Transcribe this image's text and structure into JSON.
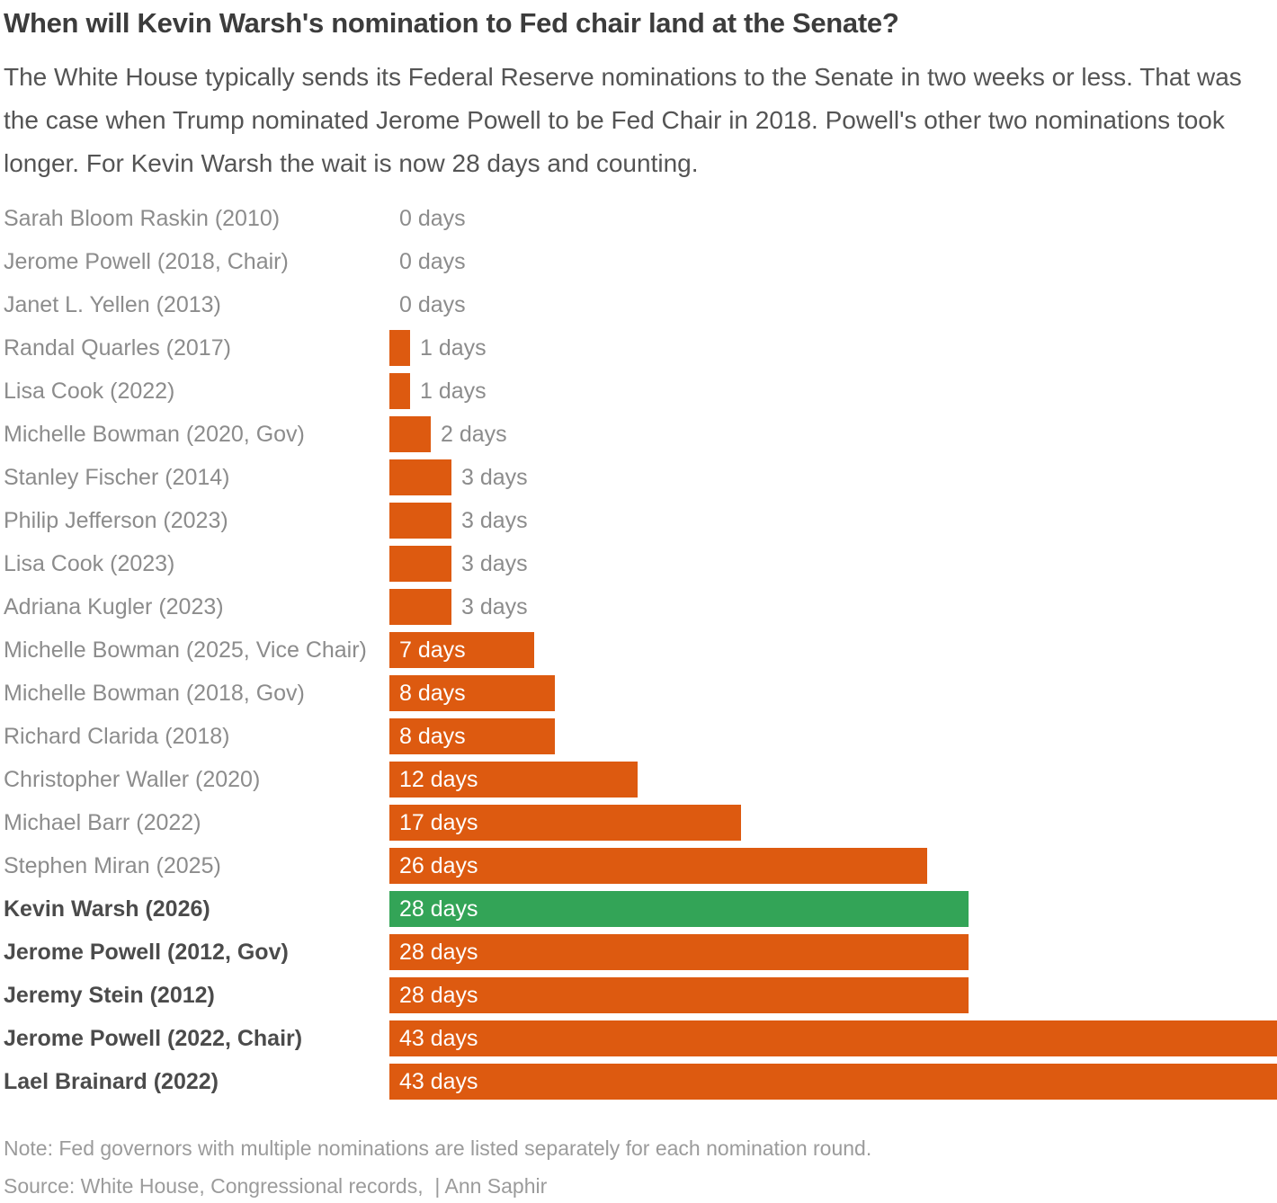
{
  "title": "When will Kevin Warsh's nomination to Fed chair land at the Senate?",
  "subtitle": "The White House typically sends its Federal Reserve nominations to the Senate in two weeks or less. That was the case when Trump nominated Jerome Powell to be Fed Chair in 2018. Powell's other two nominations took longer. For Kevin Warsh the wait is now 28 days and counting.",
  "note": "Note: Fed governors with multiple nominations are listed separately for each nomination round.",
  "source": "Source: White House, Congressional records,  | Ann Saphir",
  "colors": {
    "bar_default": "#dd5a10",
    "bar_highlight": "#33a457",
    "label_regular": "#8c8c8c",
    "label_bold": "#4b4b4b",
    "value_inside": "#ffffff",
    "value_outside": "#8c8c8c"
  },
  "chart_data": {
    "type": "bar",
    "orientation": "horizontal",
    "title": "When will Kevin Warsh's nomination to Fed chair land at the Senate?",
    "xlabel": "",
    "ylabel": "",
    "unit": "days",
    "xlim": [
      0,
      43
    ],
    "grid": false,
    "legend": false,
    "inside_label_min": 7,
    "rows": [
      {
        "label": "Sarah Bloom Raskin (2010)",
        "value": 0,
        "display": "0 days",
        "bold": false,
        "highlight": false
      },
      {
        "label": "Jerome Powell (2018, Chair)",
        "value": 0,
        "display": "0 days",
        "bold": false,
        "highlight": false
      },
      {
        "label": "Janet L. Yellen (2013)",
        "value": 0,
        "display": "0 days",
        "bold": false,
        "highlight": false
      },
      {
        "label": "Randal Quarles (2017)",
        "value": 1,
        "display": "1 days",
        "bold": false,
        "highlight": false
      },
      {
        "label": "Lisa Cook (2022)",
        "value": 1,
        "display": "1 days",
        "bold": false,
        "highlight": false
      },
      {
        "label": "Michelle Bowman (2020, Gov)",
        "value": 2,
        "display": "2 days",
        "bold": false,
        "highlight": false
      },
      {
        "label": "Stanley Fischer (2014)",
        "value": 3,
        "display": "3 days",
        "bold": false,
        "highlight": false
      },
      {
        "label": "Philip Jefferson (2023)",
        "value": 3,
        "display": "3 days",
        "bold": false,
        "highlight": false
      },
      {
        "label": "Lisa Cook (2023)",
        "value": 3,
        "display": "3 days",
        "bold": false,
        "highlight": false
      },
      {
        "label": "Adriana Kugler (2023)",
        "value": 3,
        "display": "3 days",
        "bold": false,
        "highlight": false
      },
      {
        "label": "Michelle Bowman (2025, Vice Chair)",
        "value": 7,
        "display": "7 days",
        "bold": false,
        "highlight": false
      },
      {
        "label": "Michelle Bowman (2018, Gov)",
        "value": 8,
        "display": "8 days",
        "bold": false,
        "highlight": false
      },
      {
        "label": "Richard Clarida (2018)",
        "value": 8,
        "display": "8 days",
        "bold": false,
        "highlight": false
      },
      {
        "label": "Christopher Waller (2020)",
        "value": 12,
        "display": "12 days",
        "bold": false,
        "highlight": false
      },
      {
        "label": "Michael Barr (2022)",
        "value": 17,
        "display": "17 days",
        "bold": false,
        "highlight": false
      },
      {
        "label": "Stephen Miran (2025)",
        "value": 26,
        "display": "26 days",
        "bold": false,
        "highlight": false
      },
      {
        "label": "Kevin Warsh (2026)",
        "value": 28,
        "display": "28 days",
        "bold": true,
        "highlight": true
      },
      {
        "label": "Jerome Powell (2012, Gov)",
        "value": 28,
        "display": "28 days",
        "bold": true,
        "highlight": false
      },
      {
        "label": "Jeremy Stein (2012)",
        "value": 28,
        "display": "28 days",
        "bold": true,
        "highlight": false
      },
      {
        "label": "Jerome Powell (2022, Chair)",
        "value": 43,
        "display": "43 days",
        "bold": true,
        "highlight": false
      },
      {
        "label": "Lael Brainard (2022)",
        "value": 43,
        "display": "43 days",
        "bold": true,
        "highlight": false
      }
    ]
  }
}
